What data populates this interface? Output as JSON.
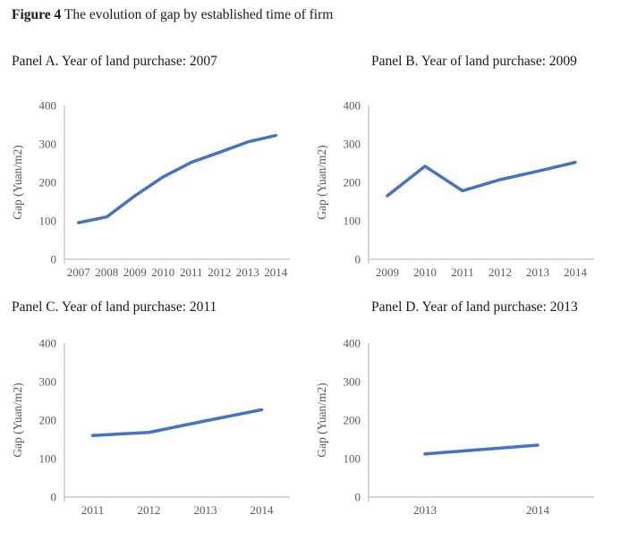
{
  "figure": {
    "title_bold": "Figure 4",
    "title_rest": " The evolution of gap by established time of firm"
  },
  "colors": {
    "line": "#4472C4",
    "axis": "#c0c0c0",
    "tick_text": "#595959",
    "title_text": "#1a1a1a"
  },
  "chart_data": [
    {
      "type": "line",
      "title": "Panel A.  Year of land purchase: 2007",
      "categories": [
        "2007",
        "2008",
        "2009",
        "2010",
        "2011",
        "2012",
        "2013",
        "2014"
      ],
      "values": [
        95,
        110,
        165,
        214,
        252,
        278,
        305,
        322
      ],
      "ylabel": "Gap (Yuan/m2)",
      "xlabel": "",
      "ylim": [
        0,
        400
      ],
      "yticks": [
        0,
        100,
        200,
        300,
        400
      ],
      "grid": false,
      "legend": "none"
    },
    {
      "type": "line",
      "title": "Panel B. Year of land purchase: 2009",
      "categories": [
        "2009",
        "2010",
        "2011",
        "2012",
        "2013",
        "2014"
      ],
      "values": [
        165,
        242,
        178,
        207,
        229,
        252
      ],
      "ylabel": "Gap (Yuan/m2)",
      "xlabel": "",
      "ylim": [
        0,
        400
      ],
      "yticks": [
        0,
        100,
        200,
        300,
        400
      ],
      "grid": false,
      "legend": "none"
    },
    {
      "type": "line",
      "title": "Panel C. Year of land purchase: 2011",
      "categories": [
        "2011",
        "2012",
        "2013",
        "2014"
      ],
      "values": [
        160,
        168,
        198,
        227
      ],
      "ylabel": "Gap (Yuan/m2)",
      "xlabel": "",
      "ylim": [
        0,
        400
      ],
      "yticks": [
        0,
        100,
        200,
        300,
        400
      ],
      "grid": false,
      "legend": "none"
    },
    {
      "type": "line",
      "title": "Panel D. Year of land purchase: 2013",
      "categories": [
        "2013",
        "2014"
      ],
      "values": [
        112,
        135
      ],
      "ylabel": "Gap (Yuan/m2)",
      "xlabel": "",
      "ylim": [
        0,
        400
      ],
      "yticks": [
        0,
        100,
        200,
        300,
        400
      ],
      "grid": false,
      "legend": "none"
    }
  ]
}
